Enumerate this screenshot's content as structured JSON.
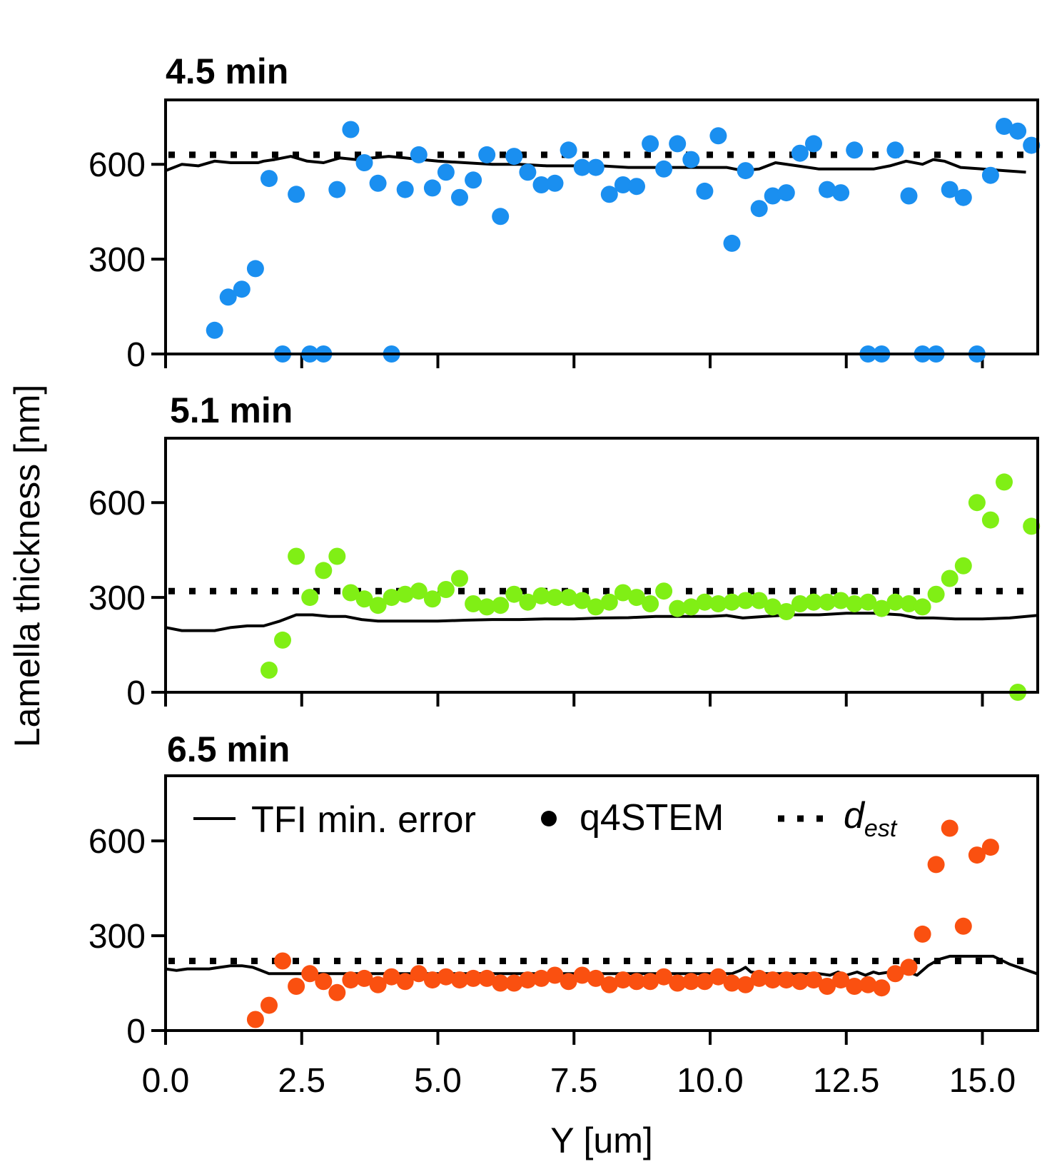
{
  "chart_data": {
    "type": "scatter",
    "xlabel": "Y [um]",
    "ylabel": "Lamella thickness [nm]",
    "xlim": [
      0,
      16.0
    ],
    "ylim": [
      0,
      800
    ],
    "xticks": [
      0,
      2.5,
      5,
      7.5,
      10,
      12.5,
      15
    ],
    "xtick_labels": [
      "0.0",
      "2.5",
      "5.0",
      "7.5",
      "10.0",
      "12.5",
      "15.0"
    ],
    "yticks": [
      0,
      300,
      600
    ],
    "ytick_labels": [
      "0",
      "300",
      "600"
    ],
    "legend": {
      "placement": "top-left of bottom panel",
      "entries": [
        {
          "label": "TFI min. error",
          "marker": "line"
        },
        {
          "label": "q4STEM",
          "marker": "dot"
        },
        {
          "label": "d",
          "subscript": "est",
          "marker": "dotted-line"
        }
      ]
    },
    "panels": [
      {
        "title": "4.5 min",
        "color": "#1a8ff0",
        "d_est": 630,
        "q4STEM": {
          "x": [
            0.9,
            1.15,
            1.4,
            1.65,
            1.9,
            2.15,
            2.4,
            2.65,
            2.9,
            3.15,
            3.4,
            3.65,
            3.9,
            4.15,
            4.4,
            4.65,
            4.9,
            5.15,
            5.4,
            5.65,
            5.9,
            6.15,
            6.4,
            6.65,
            6.9,
            7.15,
            7.4,
            7.65,
            7.9,
            8.15,
            8.4,
            8.65,
            8.9,
            9.15,
            9.4,
            9.65,
            9.9,
            10.15,
            10.4,
            10.65,
            10.9,
            11.15,
            11.4,
            11.65,
            11.9,
            12.15,
            12.4,
            12.65,
            12.9,
            13.15,
            13.4,
            13.65,
            13.9,
            14.15,
            14.4,
            14.65,
            14.9,
            15.15,
            15.4,
            15.65,
            15.9
          ],
          "y": [
            75,
            180,
            205,
            270,
            555,
            0,
            505,
            0,
            0,
            520,
            710,
            605,
            540,
            0,
            520,
            630,
            525,
            575,
            495,
            550,
            630,
            435,
            625,
            575,
            535,
            540,
            645,
            590,
            590,
            505,
            535,
            530,
            665,
            585,
            665,
            615,
            515,
            690,
            350,
            580,
            460,
            500,
            510,
            635,
            665,
            520,
            510,
            645,
            0,
            0,
            645,
            500,
            0,
            0,
            520,
            495,
            0,
            565,
            720,
            705,
            660
          ]
        },
        "tfi": {
          "x": [
            0,
            0.3,
            0.6,
            0.9,
            1.2,
            1.5,
            1.7,
            1.8,
            2.0,
            2.3,
            2.6,
            2.9,
            3.2,
            3.5,
            3.8,
            4.1,
            4.4,
            4.7,
            5.0,
            5.5,
            6.0,
            6.5,
            7.0,
            7.5,
            8.0,
            8.5,
            9.0,
            9.5,
            10.0,
            10.3,
            10.6,
            10.9,
            11.2,
            11.6,
            12.0,
            12.5,
            13.0,
            13.3,
            13.6,
            13.9,
            14.1,
            14.3,
            14.6,
            15.0,
            15.4,
            15.8
          ],
          "y": [
            580,
            600,
            595,
            610,
            605,
            605,
            605,
            610,
            615,
            625,
            610,
            605,
            620,
            615,
            620,
            625,
            620,
            615,
            610,
            605,
            600,
            600,
            595,
            595,
            595,
            590,
            590,
            590,
            590,
            590,
            580,
            585,
            605,
            595,
            585,
            585,
            585,
            595,
            610,
            600,
            615,
            610,
            590,
            585,
            580,
            575
          ]
        }
      },
      {
        "title": "5.1 min",
        "color": "#80ef15",
        "d_est": 320,
        "q4STEM": {
          "x": [
            1.9,
            2.15,
            2.4,
            2.65,
            2.9,
            3.15,
            3.4,
            3.65,
            3.9,
            4.15,
            4.4,
            4.65,
            4.9,
            5.15,
            5.4,
            5.65,
            5.9,
            6.15,
            6.4,
            6.65,
            6.9,
            7.15,
            7.4,
            7.65,
            7.9,
            8.15,
            8.4,
            8.65,
            8.9,
            9.15,
            9.4,
            9.65,
            9.9,
            10.15,
            10.4,
            10.65,
            10.9,
            11.15,
            11.4,
            11.65,
            11.9,
            12.15,
            12.4,
            12.65,
            12.9,
            13.15,
            13.4,
            13.65,
            13.9,
            14.15,
            14.4,
            14.65,
            14.9,
            15.15,
            15.4,
            15.65,
            15.9
          ],
          "y": [
            70,
            165,
            430,
            300,
            385,
            430,
            315,
            295,
            275,
            300,
            310,
            320,
            295,
            325,
            360,
            280,
            270,
            275,
            310,
            285,
            305,
            300,
            300,
            290,
            270,
            285,
            315,
            300,
            280,
            320,
            265,
            270,
            285,
            280,
            285,
            290,
            290,
            270,
            255,
            280,
            285,
            285,
            290,
            280,
            285,
            265,
            285,
            280,
            270,
            310,
            360,
            400,
            600,
            545,
            665,
            0,
            525
          ]
        },
        "tfi": {
          "x": [
            0,
            0.3,
            0.6,
            0.9,
            1.2,
            1.5,
            1.8,
            2.1,
            2.4,
            2.7,
            3.0,
            3.3,
            3.6,
            3.9,
            4.2,
            4.5,
            5.0,
            5.5,
            6.0,
            6.5,
            7.0,
            7.5,
            8.0,
            8.5,
            9.0,
            9.5,
            10.0,
            10.3,
            10.6,
            11.0,
            11.5,
            12.0,
            12.5,
            13.0,
            13.5,
            13.8,
            14.1,
            14.5,
            15.0,
            15.5,
            16.0
          ],
          "y": [
            205,
            195,
            195,
            195,
            205,
            210,
            210,
            225,
            245,
            245,
            240,
            240,
            230,
            225,
            225,
            225,
            225,
            228,
            230,
            230,
            232,
            232,
            235,
            236,
            240,
            240,
            240,
            243,
            235,
            240,
            245,
            245,
            250,
            250,
            245,
            235,
            235,
            232,
            232,
            235,
            243
          ]
        }
      },
      {
        "title": "6.5 min",
        "color": "#fa5010",
        "d_est": 220,
        "q4STEM": {
          "x": [
            1.65,
            1.9,
            2.15,
            2.4,
            2.65,
            2.9,
            3.15,
            3.4,
            3.65,
            3.9,
            4.15,
            4.4,
            4.65,
            4.9,
            5.15,
            5.4,
            5.65,
            5.9,
            6.15,
            6.4,
            6.65,
            6.9,
            7.15,
            7.4,
            7.65,
            7.9,
            8.15,
            8.4,
            8.65,
            8.9,
            9.15,
            9.4,
            9.65,
            9.9,
            10.15,
            10.4,
            10.65,
            10.9,
            11.15,
            11.4,
            11.65,
            11.9,
            12.15,
            12.4,
            12.65,
            12.9,
            13.15,
            13.4,
            13.65,
            13.9,
            14.15,
            14.4,
            14.65,
            14.9,
            15.15
          ],
          "y": [
            35,
            80,
            220,
            140,
            180,
            155,
            120,
            160,
            165,
            145,
            170,
            155,
            180,
            160,
            170,
            160,
            165,
            165,
            150,
            150,
            160,
            165,
            175,
            155,
            175,
            165,
            145,
            160,
            155,
            155,
            170,
            150,
            155,
            155,
            170,
            150,
            145,
            165,
            160,
            160,
            155,
            160,
            140,
            160,
            140,
            145,
            135,
            180,
            200,
            305,
            525,
            640,
            330,
            555,
            580
          ]
        },
        "tfi": {
          "x": [
            0,
            0.2,
            0.4,
            0.6,
            0.8,
            1.0,
            1.2,
            1.4,
            1.6,
            1.75,
            1.9,
            2.5,
            3.0,
            4.0,
            5.0,
            6.0,
            7.0,
            8.0,
            9.0,
            10.0,
            10.4,
            10.55,
            10.65,
            10.75,
            11.0,
            12.0,
            12.2,
            12.35,
            12.5,
            12.7,
            12.85,
            13.0,
            13.1,
            13.3,
            13.5,
            13.65,
            13.8,
            14.0,
            14.2,
            14.4,
            14.8,
            15.2,
            15.5,
            16.0
          ],
          "y": [
            195,
            190,
            195,
            195,
            195,
            200,
            205,
            205,
            200,
            190,
            180,
            180,
            180,
            180,
            180,
            180,
            180,
            180,
            180,
            180,
            180,
            190,
            200,
            185,
            180,
            180,
            175,
            185,
            175,
            185,
            175,
            185,
            180,
            185,
            180,
            185,
            175,
            205,
            225,
            235,
            235,
            235,
            210,
            180
          ]
        }
      }
    ]
  }
}
